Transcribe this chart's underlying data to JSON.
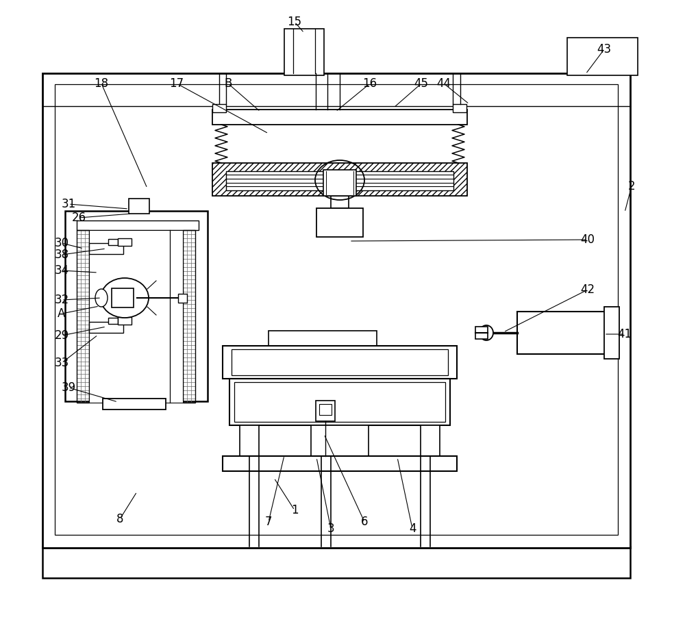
{
  "bg": "#ffffff",
  "figsize": [
    10.0,
    9.01
  ],
  "dpi": 100,
  "labels": [
    [
      "15",
      430,
      32,
      444,
      48
    ],
    [
      "B",
      333,
      122,
      380,
      163
    ],
    [
      "17",
      258,
      122,
      392,
      195
    ],
    [
      "18",
      148,
      122,
      215,
      275
    ],
    [
      "16",
      540,
      122,
      490,
      163
    ],
    [
      "45",
      615,
      122,
      575,
      157
    ],
    [
      "44",
      648,
      122,
      685,
      152
    ],
    [
      "43",
      882,
      72,
      855,
      108
    ],
    [
      "2",
      922,
      272,
      912,
      310
    ],
    [
      "31",
      100,
      298,
      188,
      305
    ],
    [
      "26",
      115,
      318,
      192,
      312
    ],
    [
      "30",
      90,
      355,
      122,
      363
    ],
    [
      "38",
      90,
      372,
      155,
      363
    ],
    [
      "34",
      90,
      395,
      143,
      398
    ],
    [
      "32",
      90,
      438,
      148,
      435
    ],
    [
      "A",
      90,
      458,
      145,
      447
    ],
    [
      "29",
      90,
      490,
      155,
      477
    ],
    [
      "33",
      90,
      530,
      143,
      489
    ],
    [
      "39",
      100,
      566,
      172,
      587
    ],
    [
      "40",
      858,
      350,
      510,
      352
    ],
    [
      "42",
      858,
      423,
      735,
      485
    ],
    [
      "41",
      912,
      488,
      882,
      488
    ],
    [
      "8",
      175,
      758,
      200,
      718
    ],
    [
      "1",
      430,
      745,
      400,
      698
    ],
    [
      "7",
      392,
      762,
      415,
      665
    ],
    [
      "3",
      483,
      772,
      462,
      668
    ],
    [
      "6",
      532,
      762,
      473,
      634
    ],
    [
      "4",
      602,
      772,
      580,
      668
    ]
  ]
}
